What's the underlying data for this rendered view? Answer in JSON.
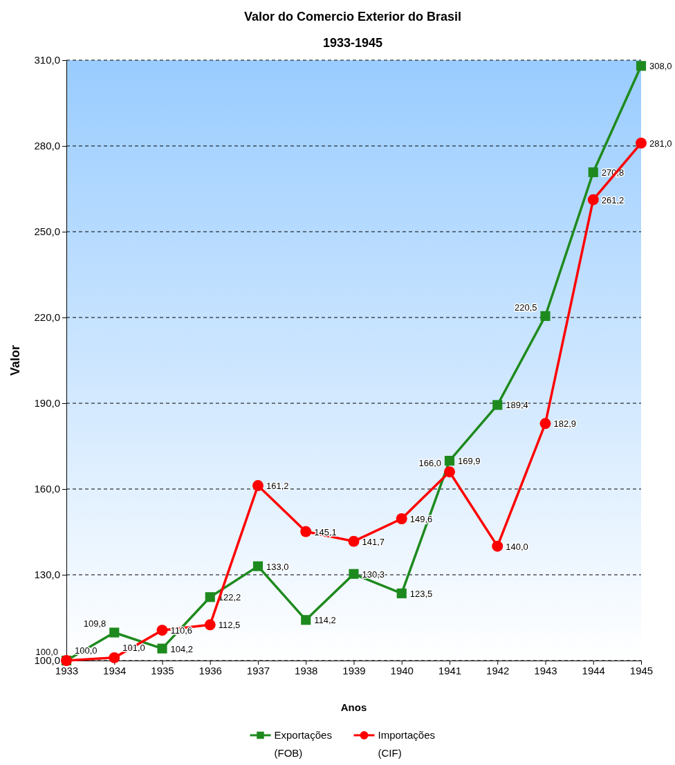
{
  "chart_data": {
    "type": "line",
    "title": "Valor do Comercio Exterior do Brasil",
    "subtitle": "1933-1945",
    "xlabel": "Anos",
    "ylabel": "Valor",
    "categories": [
      "1933",
      "1934",
      "1935",
      "1936",
      "1937",
      "1938",
      "1939",
      "1940",
      "1941",
      "1942",
      "1943",
      "1944",
      "1945"
    ],
    "ylim": [
      100,
      310
    ],
    "yticks": [
      {
        "value": 100,
        "label": "100,0"
      },
      {
        "value": 130,
        "label": "130,0"
      },
      {
        "value": 160,
        "label": "160,0"
      },
      {
        "value": 190,
        "label": "190,0"
      },
      {
        "value": 220,
        "label": "220,0"
      },
      {
        "value": 250,
        "label": "250,0"
      },
      {
        "value": 280,
        "label": "280,0"
      },
      {
        "value": 310,
        "label": "310,0"
      }
    ],
    "grid": "y",
    "legend": "bottom",
    "line_style": "solid",
    "series": [
      {
        "name": "Exportações (FOB)",
        "color": "#1e8a1e",
        "marker": "square",
        "values": [
          100.0,
          109.8,
          104.2,
          122.2,
          133.0,
          114.2,
          130.3,
          123.5,
          169.9,
          189.4,
          220.5,
          270.8,
          308.0
        ],
        "value_labels": [
          "100,0",
          "109,8",
          "104,2",
          "122,2",
          "133,0",
          "114,2",
          "130,3",
          "123,5",
          "169,9",
          "189,4",
          "220,5",
          "270,8",
          "308,0"
        ]
      },
      {
        "name": "Importações (CIF)",
        "color": "#ff0000",
        "marker": "circle",
        "values": [
          100.0,
          101.0,
          110.6,
          112.5,
          161.2,
          145.1,
          141.7,
          149.6,
          166.0,
          140.0,
          182.9,
          261.2,
          281.0
        ],
        "value_labels": [
          "100,0",
          "101,0",
          "110,6",
          "112,5",
          "161,2",
          "145,1",
          "141,7",
          "149,6",
          "166,0",
          "140,0",
          "182,9",
          "261,2",
          "281,0"
        ]
      }
    ]
  }
}
